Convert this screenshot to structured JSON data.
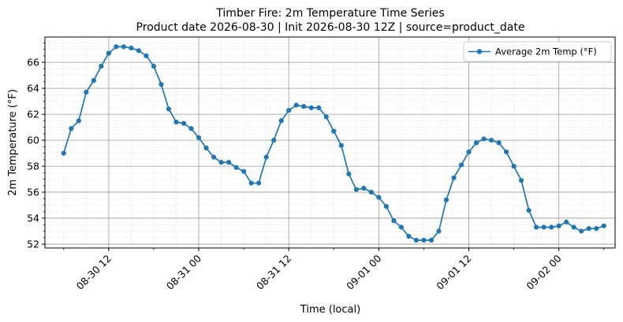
{
  "chart_data": {
    "type": "line",
    "title_line1": "Timber Fire: 2m Temperature Time Series",
    "title_line2": "Product date 2026-08-30 | Init 2026-08-30 12Z | source=product_date",
    "xlabel": "Time (local)",
    "ylabel": "2m Temperature (°F)",
    "ylim": [
      51.7,
      67.95
    ],
    "yticks": [
      52,
      54,
      56,
      58,
      60,
      62,
      64,
      66
    ],
    "xlim": [
      "2026-08-30 03:30",
      "2026-09-02 07:30"
    ],
    "xticks": [
      {
        "t": "2026-08-30 12:00",
        "label": "08-30 12"
      },
      {
        "t": "2026-08-31 00:00",
        "label": "08-31 00"
      },
      {
        "t": "2026-08-31 12:00",
        "label": "08-31 12"
      },
      {
        "t": "2026-09-01 00:00",
        "label": "09-01 00"
      },
      {
        "t": "2026-09-01 12:00",
        "label": "09-01 12"
      },
      {
        "t": "2026-09-02 00:00",
        "label": "09-02 00"
      }
    ],
    "grid": true,
    "minor_grid": true,
    "legend_position": "upper right",
    "series": [
      {
        "name": "Average 2m Temp (°F)",
        "color": "#1f77b4",
        "x_start": "2026-08-30 06:00",
        "x_step_hours": 1,
        "values": [
          59.0,
          60.9,
          61.5,
          63.7,
          64.6,
          65.7,
          66.7,
          67.2,
          67.2,
          67.1,
          66.9,
          66.5,
          65.7,
          64.3,
          62.4,
          61.4,
          61.3,
          60.9,
          60.2,
          59.4,
          58.7,
          58.3,
          58.3,
          57.9,
          57.6,
          56.7,
          56.7,
          58.7,
          60.0,
          61.5,
          62.3,
          62.7,
          62.6,
          62.5,
          62.5,
          61.8,
          60.7,
          59.6,
          57.4,
          56.2,
          56.3,
          56.0,
          55.6,
          54.9,
          53.8,
          53.3,
          52.6,
          52.3,
          52.3,
          52.3,
          53.0,
          55.4,
          57.1,
          58.1,
          59.1,
          59.8,
          60.1,
          60.0,
          59.8,
          59.1,
          58.0,
          56.9,
          54.6,
          53.3,
          53.3,
          53.3,
          53.4,
          53.7,
          53.3,
          53.0,
          53.2,
          53.2,
          53.4
        ]
      }
    ]
  }
}
